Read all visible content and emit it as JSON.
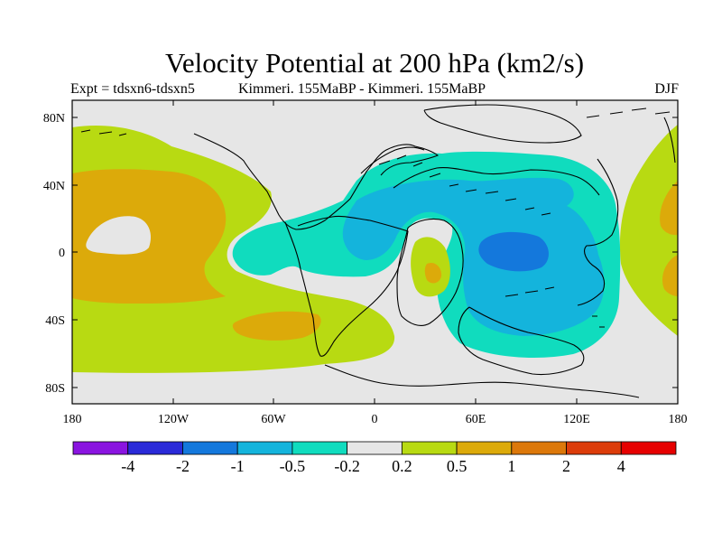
{
  "title": "Velocity Potential at 200 hPa (km2/s)",
  "subtitle_left": "Expt = tdsxn6-tdsxn5",
  "subtitle_center": "Kimmeri. 155MaBP - Kimmeri. 155MaBP",
  "subtitle_right": "DJF",
  "axes": {
    "lat_labels": [
      "80N",
      "40N",
      "0",
      "40S",
      "80S"
    ],
    "lon_labels": [
      "180",
      "120W",
      "60W",
      "0",
      "60E",
      "120E",
      "180"
    ]
  },
  "colorbar": {
    "labels": [
      "-4",
      "-2",
      "-1",
      "-0.5",
      "-0.2",
      "0.2",
      "0.5",
      "1",
      "2",
      "4"
    ],
    "colors": [
      "#8a14e0",
      "#2a2ad8",
      "#1478dc",
      "#14b4dc",
      "#10dcbe",
      "#e6e6e6",
      "#b8da12",
      "#dcaa0a",
      "#dc780a",
      "#dc3c0a",
      "#e60000"
    ]
  }
}
